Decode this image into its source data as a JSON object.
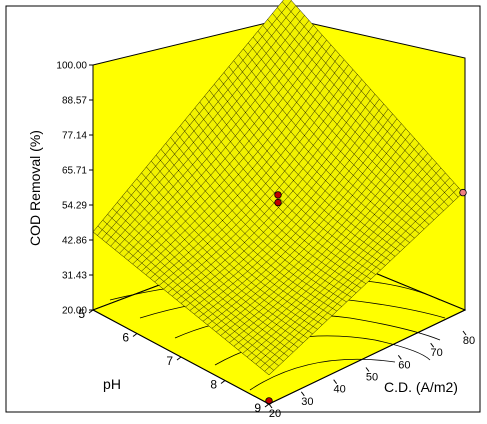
{
  "chart_data": {
    "type": "surface",
    "zlabel": "COD Removal  (%)",
    "xlabel": "C.D. (A/m2)",
    "ylabel": "pH",
    "z_ticks": [
      "20.00",
      "31.43",
      "42.86",
      "54.29",
      "65.71",
      "77.14",
      "88.57",
      "100.00"
    ],
    "x_ticks": [
      "20",
      "30",
      "40",
      "50",
      "60",
      "70",
      "80"
    ],
    "y_ticks": [
      "5",
      "6",
      "7",
      "8",
      "9"
    ],
    "xlim": [
      20,
      80
    ],
    "ylim": [
      5,
      9
    ],
    "zlim": [
      20,
      100
    ],
    "surface_color": "#f2f200",
    "panel_color": "#ffff00",
    "surface_corners": [
      {
        "cd": 20,
        "ph": 5,
        "cod": 45.5
      },
      {
        "cd": 80,
        "ph": 5,
        "cod": 98.8
      },
      {
        "cd": 80,
        "ph": 9,
        "cod": 65.2
      },
      {
        "cd": 20,
        "ph": 9,
        "cod": 29.5
      }
    ],
    "design_points": [
      {
        "cd": 80,
        "ph": 5,
        "cod": 98.8,
        "color": "#f08080"
      },
      {
        "cd": 80,
        "ph": 9,
        "cod": 65.2,
        "color": "#f08080"
      },
      {
        "cd": 50,
        "ph": 7,
        "cod": 61.0,
        "color": "#c00000"
      },
      {
        "cd": 50,
        "ph": 7,
        "cod": 58.5,
        "color": "#c00000"
      },
      {
        "cd": 20,
        "ph": 9,
        "cod": 21.0,
        "color": "#c00000"
      }
    ]
  }
}
